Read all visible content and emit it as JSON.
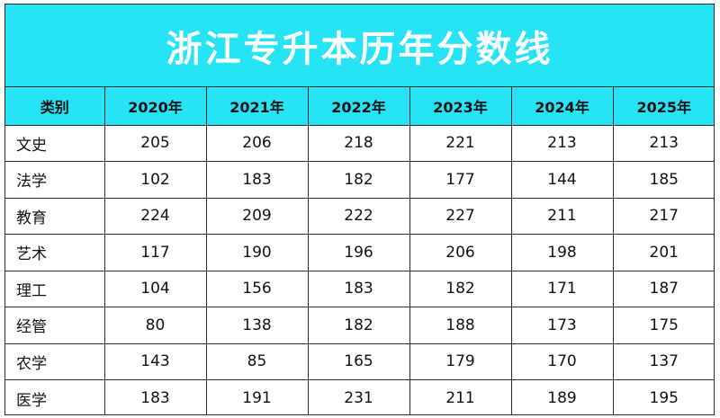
{
  "title": "浙江专升本历年分数线",
  "colors": {
    "header_bg": "#27e3f6",
    "title_text": "#ffffff",
    "border": "#2a2a2a"
  },
  "table": {
    "columns": [
      "类别",
      "2020年",
      "2021年",
      "2022年",
      "2023年",
      "2024年",
      "2025年"
    ],
    "rows": [
      {
        "category": "文史",
        "values": [
          "205",
          "206",
          "218",
          "221",
          "213",
          "213"
        ]
      },
      {
        "category": "法学",
        "values": [
          "102",
          "183",
          "182",
          "177",
          "144",
          "185"
        ]
      },
      {
        "category": "教育",
        "values": [
          "224",
          "209",
          "222",
          "227",
          "211",
          "217"
        ]
      },
      {
        "category": "艺术",
        "values": [
          "117",
          "190",
          "196",
          "206",
          "198",
          "201"
        ]
      },
      {
        "category": "理工",
        "values": [
          "104",
          "156",
          "183",
          "182",
          "171",
          "187"
        ]
      },
      {
        "category": "经管",
        "values": [
          "80",
          "138",
          "182",
          "188",
          "173",
          "175"
        ]
      },
      {
        "category": "农学",
        "values": [
          "143",
          "85",
          "165",
          "179",
          "170",
          "137"
        ]
      },
      {
        "category": "医学",
        "values": [
          "183",
          "191",
          "231",
          "211",
          "189",
          "195"
        ]
      }
    ]
  }
}
